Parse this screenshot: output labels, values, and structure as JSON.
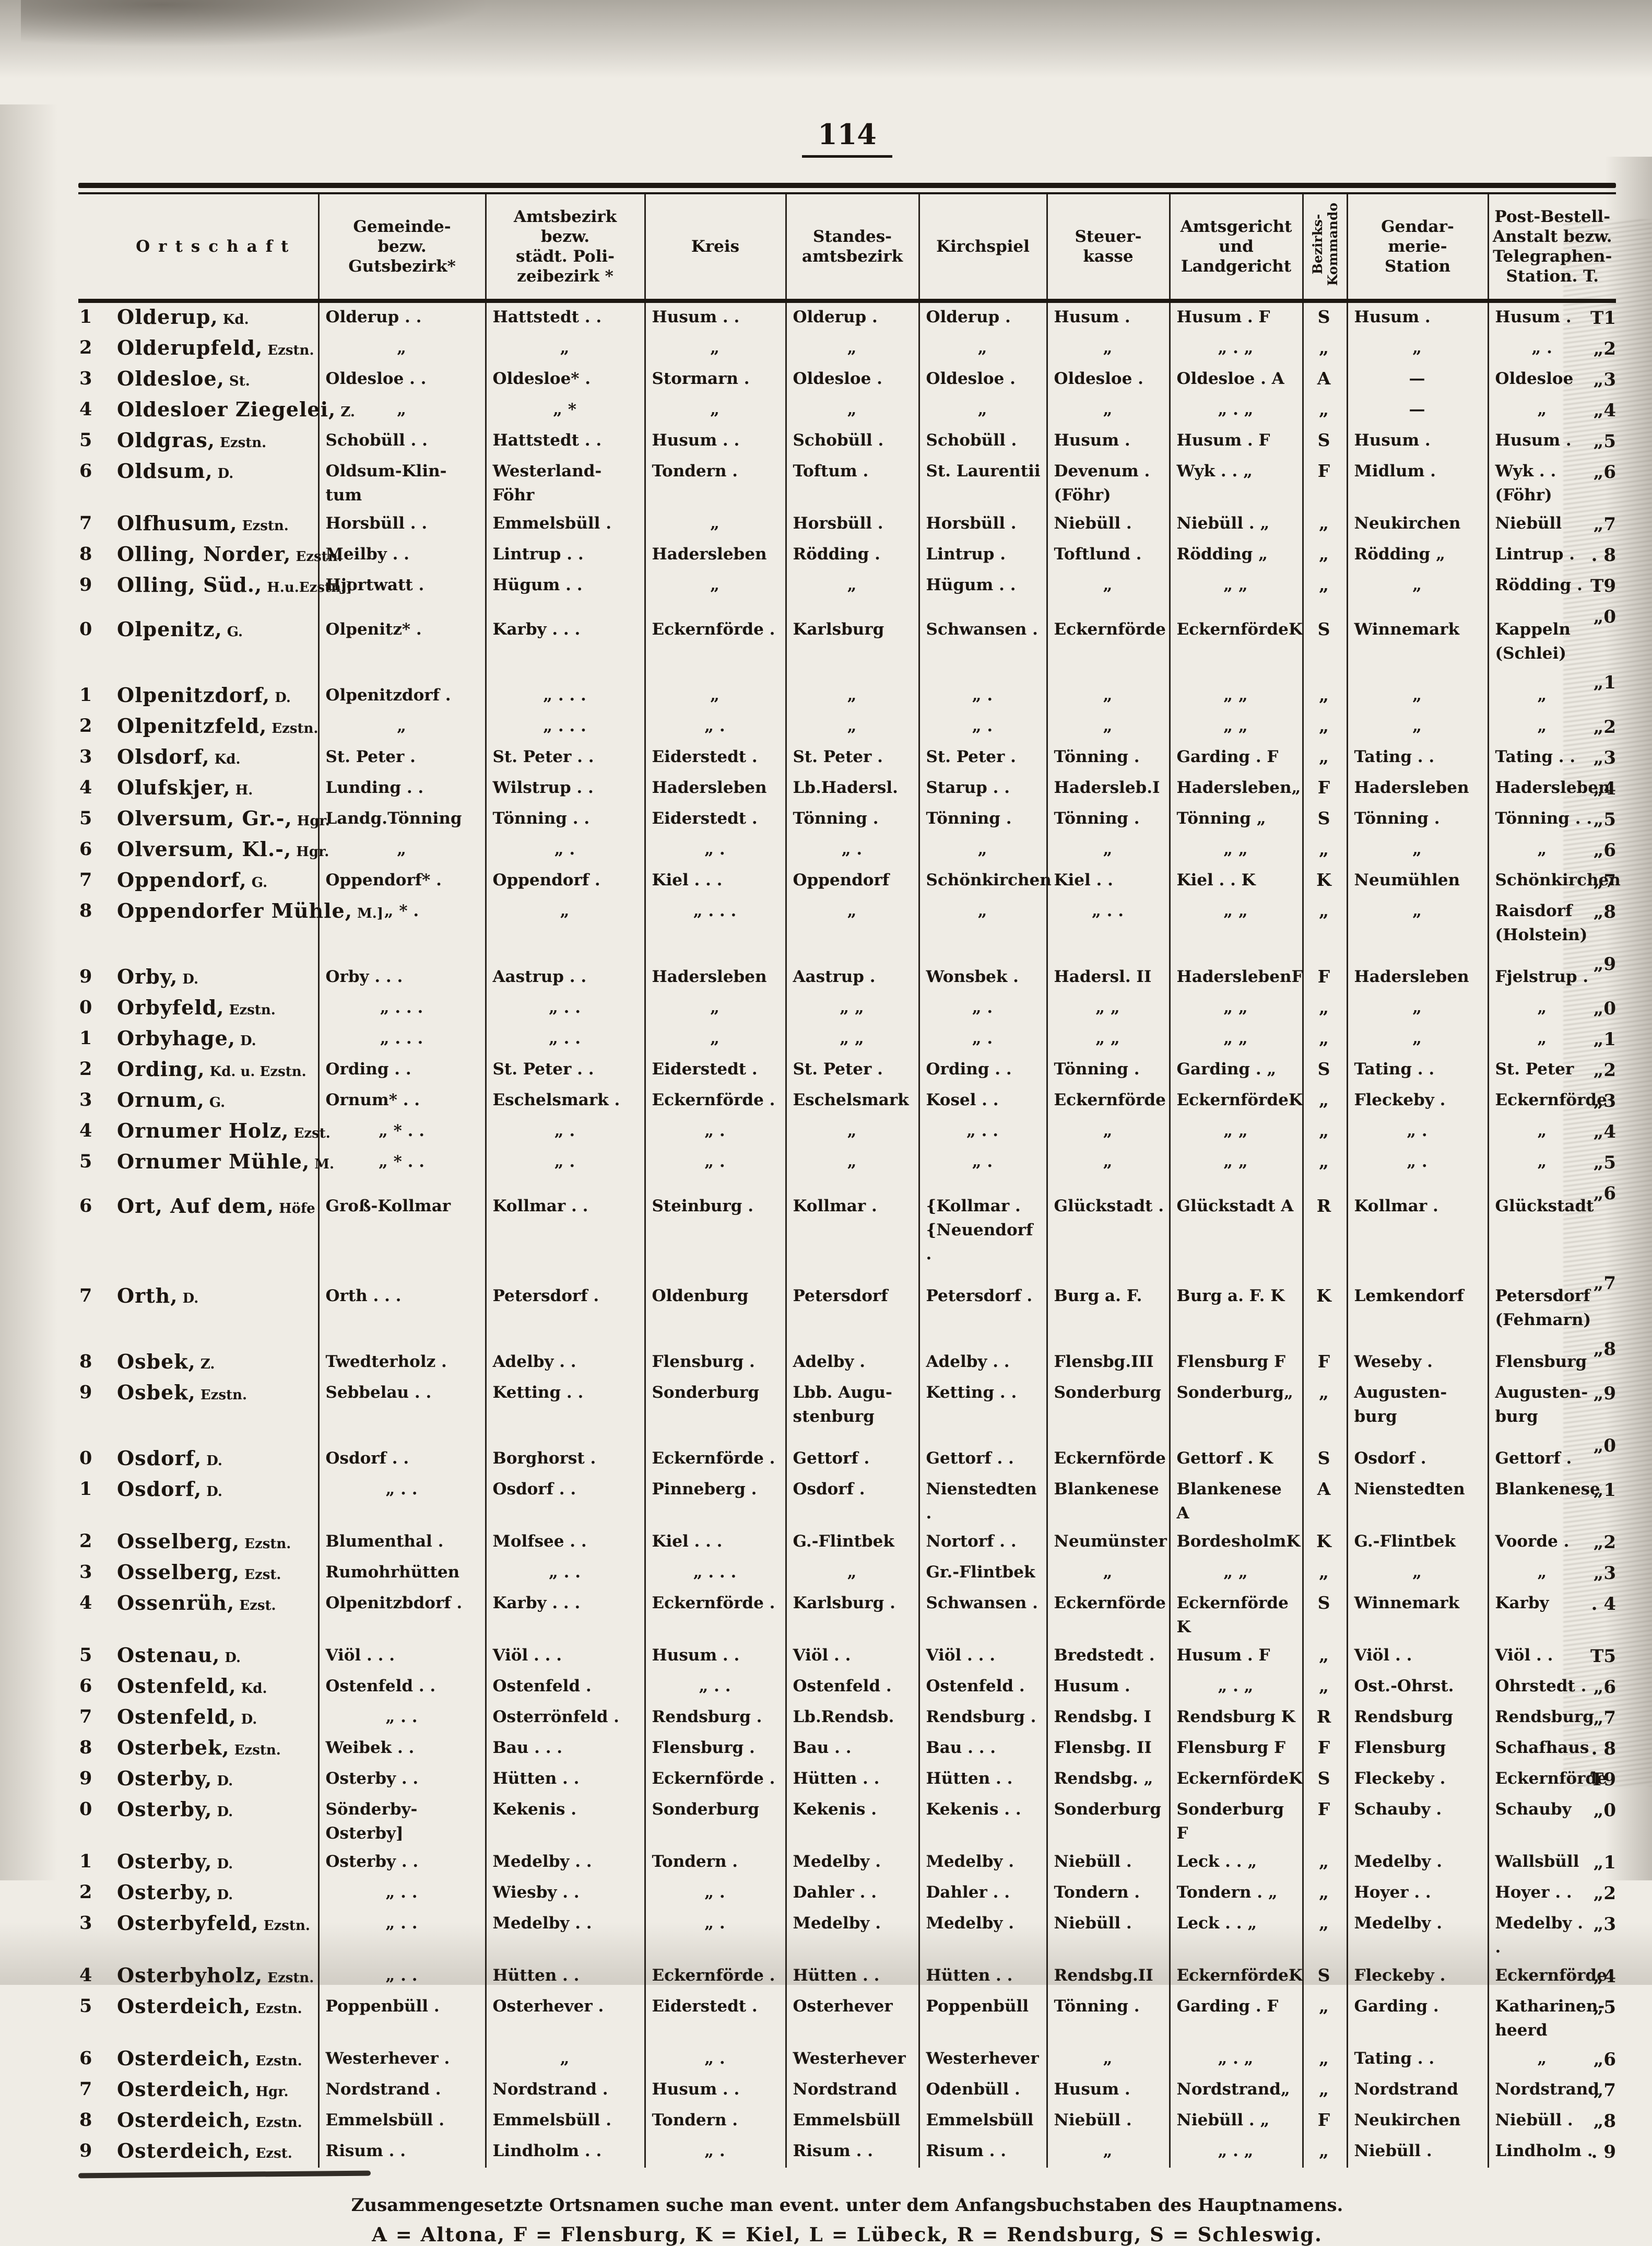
{
  "page": {
    "number": "114"
  },
  "table": {
    "header": {
      "columns": [
        "Ortschaft",
        "Gemeinde-\nbezw.\nGutsbezirk*",
        "Amtsbezirk\nbezw.\nstädt. Poli-\nzeibezirk *",
        "Kreis",
        "Standes-\namtsbezirk",
        "Kirchspiel",
        "Steuer-\nkasse",
        "Amtsgericht\nund\nLandgericht",
        "Bezirks-\nKommando",
        "Gendar-\nmerie-\nStation",
        "Post-Bestell-\nAnstalt bezw.\nTelegraphen-\nStation. T."
      ]
    },
    "rows": [
      {
        "n": "1",
        "ort": "Olderup,",
        "typ": "Kd.",
        "gap": false,
        "cells": [
          "Olderup . .",
          "Hattstedt . .",
          "Husum . .",
          "Olderup .",
          "Olderup .",
          "Husum .",
          "Husum . F",
          "S",
          "Husum .",
          "Husum ."
        ],
        "rn": "T1"
      },
      {
        "n": "2",
        "ort": "Olderupfeld,",
        "typ": "Ezstn.",
        "gap": false,
        "cells": [
          "„",
          "„",
          "„",
          "„",
          "„",
          "„",
          "„ . „",
          "„",
          "„",
          "„ ."
        ],
        "rn": "„2"
      },
      {
        "n": "3",
        "ort": "Oldesloe,",
        "typ": "St.",
        "gap": false,
        "cells": [
          "Oldesloe . .",
          "Oldesloe* .",
          "Stormarn .",
          "Oldesloe .",
          "Oldesloe .",
          "Oldesloe .",
          "Oldesloe . A",
          "A",
          "—",
          "Oldesloe"
        ],
        "rn": "„3"
      },
      {
        "n": "4",
        "ort": "Oldesloer Ziegelei,",
        "typ": "Z.",
        "gap": false,
        "cells": [
          "„",
          "„  *",
          "„",
          "„",
          "„",
          "„",
          "„ . „",
          "„",
          "—",
          "„"
        ],
        "rn": "„4"
      },
      {
        "n": "5",
        "ort": "Oldgras,",
        "typ": "Ezstn.",
        "gap": false,
        "cells": [
          "Schobüll . .",
          "Hattstedt . .",
          "Husum . .",
          "Schobüll .",
          "Schobüll .",
          "Husum .",
          "Husum . F",
          "S",
          "Husum .",
          "Husum ."
        ],
        "rn": "„5"
      },
      {
        "n": "6",
        "ort": "Oldsum,",
        "typ": "D.",
        "gap": false,
        "cells": [
          "Oldsum-Klin-\ntum",
          "Westerland-\nFöhr",
          "Tondern .",
          "Toftum .",
          "St. Laurentii",
          "Devenum .\n(Föhr)",
          "Wyk . . „",
          "F",
          "Midlum .",
          "Wyk . .\n(Föhr)"
        ],
        "rn": "„6"
      },
      {
        "n": "7",
        "ort": "Olfhusum,",
        "typ": "Ezstn.",
        "gap": false,
        "cells": [
          "Horsbüll . .",
          "Emmelsbüll .",
          "„",
          "Horsbüll .",
          "Horsbüll .",
          "Niebüll .",
          "Niebüll . „",
          "„",
          "Neukirchen",
          "Niebüll"
        ],
        "rn": "„7"
      },
      {
        "n": "8",
        "ort": "Olling, Norder,",
        "typ": "Ezstn.",
        "gap": false,
        "cells": [
          "Meilby . .",
          "Lintrup . .",
          "Hadersleben",
          "Rödding .",
          "Lintrup .",
          "Toftlund .",
          "Rödding  „",
          "„",
          "Rödding  „",
          "Lintrup ."
        ],
        "rn": ". 8"
      },
      {
        "n": "9",
        "ort": "Olling, Süd.,",
        "typ": "H.u.Ezstn.]",
        "gap": false,
        "cells": [
          "Hjortwatt .",
          "Hügum . .",
          "„",
          "„",
          "Hügum . .",
          "„",
          "„ „",
          "„",
          "„",
          "Rödding ."
        ],
        "rn": "T9"
      },
      {
        "n": "0",
        "ort": "Olpenitz,",
        "typ": "G.",
        "gap": true,
        "cells": [
          "Olpenitz* .",
          "Karby . . .",
          "Eckernförde .",
          "Karlsburg",
          "Schwansen .",
          "Eckernförde",
          "EckernfördeK",
          "S",
          "Winnemark",
          "Kappeln\n(Schlei)"
        ],
        "rn": "„0"
      },
      {
        "n": "1",
        "ort": "Olpenitzdorf,",
        "typ": "D.",
        "gap": true,
        "cells": [
          "Olpenitzdorf .",
          "„ . . .",
          "„",
          "„",
          "„ .",
          "„",
          "„ „",
          "„",
          "„",
          "„"
        ],
        "rn": "„1"
      },
      {
        "n": "2",
        "ort": "Olpenitzfeld,",
        "typ": "Ezstn.",
        "gap": false,
        "cells": [
          "„",
          "„ . . .",
          "„ .",
          "„",
          "„ .",
          "„",
          "„ „",
          "„",
          "„",
          "„"
        ],
        "rn": "„2"
      },
      {
        "n": "3",
        "ort": "Olsdorf,",
        "typ": "Kd.",
        "gap": false,
        "cells": [
          "St. Peter .",
          "St. Peter . .",
          "Eiderstedt .",
          "St. Peter .",
          "St. Peter .",
          "Tönning .",
          "Garding . F",
          "„",
          "Tating . .",
          "Tating . ."
        ],
        "rn": "„3"
      },
      {
        "n": "4",
        "ort": "Olufskjer,",
        "typ": "H.",
        "gap": false,
        "cells": [
          "Lunding . .",
          "Wilstrup . .",
          "Hadersleben",
          "Lb.Hadersl.",
          "Starup . .",
          "Hadersleb.I",
          "Hadersleben„",
          "F",
          "Hadersleben",
          "Hadersleben"
        ],
        "rn": "„4"
      },
      {
        "n": "5",
        "ort": "Olversum, Gr.-,",
        "typ": "Hgr.",
        "gap": false,
        "cells": [
          "Landg.Tönning",
          "Tönning . .",
          "Eiderstedt .",
          "Tönning .",
          "Tönning .",
          "Tönning .",
          "Tönning  „",
          "S",
          "Tönning .",
          "Tönning . ."
        ],
        "rn": "„5"
      },
      {
        "n": "6",
        "ort": "Olversum, Kl.-,",
        "typ": "Hgr.",
        "gap": false,
        "cells": [
          "„",
          "„ .",
          "„ .",
          "„ .",
          "„",
          "„",
          "„ „",
          "„",
          "„",
          "„"
        ],
        "rn": "„6"
      },
      {
        "n": "7",
        "ort": "Oppendorf,",
        "typ": "G.",
        "gap": false,
        "cells": [
          "Oppendorf* .",
          "Oppendorf .",
          "Kiel . . .",
          "Oppendorf",
          "Schönkirchen",
          "Kiel . .",
          "Kiel . . K",
          "K",
          "Neumühlen",
          "Schönkirchen"
        ],
        "rn": "„7"
      },
      {
        "n": "8",
        "ort": "Oppendorfer Mühle,",
        "typ": "M.]",
        "gap": false,
        "cells": [
          "„  * .",
          "„",
          "„ . . .",
          "„",
          "„",
          "„ . .",
          "„ „",
          "„",
          "„",
          "Raisdorf\n(Holstein)"
        ],
        "rn": "„8"
      },
      {
        "n": "9",
        "ort": "Orby,",
        "typ": "D.",
        "gap": true,
        "cells": [
          "Orby . . .",
          "Aastrup . .",
          "Hadersleben",
          "Aastrup .",
          "Wonsbek .",
          "Hadersl. II",
          "HaderslebenF",
          "F",
          "Hadersleben",
          "Fjelstrup ."
        ],
        "rn": "„9"
      },
      {
        "n": "0",
        "ort": "Orbyfeld,",
        "typ": "Ezstn.",
        "gap": false,
        "cells": [
          "„ . . .",
          "„ . .",
          "„",
          "„ „",
          "„ .",
          "„ „",
          "„ „",
          "„",
          "„",
          "„"
        ],
        "rn": "„0"
      },
      {
        "n": "1",
        "ort": "Orbyhage,",
        "typ": "D.",
        "gap": false,
        "cells": [
          "„ . . .",
          "„ . .",
          "„",
          "„ „",
          "„ .",
          "„ „",
          "„ „",
          "„",
          "„",
          "„"
        ],
        "rn": "„1"
      },
      {
        "n": "2",
        "ort": "Ording,",
        "typ": "Kd. u. Ezstn.",
        "gap": false,
        "cells": [
          "Ording . .",
          "St. Peter . .",
          "Eiderstedt .",
          "St. Peter .",
          "Ording . .",
          "Tönning .",
          "Garding . „",
          "S",
          "Tating . .",
          "St. Peter"
        ],
        "rn": "„2"
      },
      {
        "n": "3",
        "ort": "Ornum,",
        "typ": "G.",
        "gap": false,
        "cells": [
          "Ornum* . .",
          "Eschelsmark .",
          "Eckernförde .",
          "Eschelsmark",
          "Kosel . .",
          "Eckernförde",
          "EckernfördeK",
          "„",
          "Fleckeby .",
          "Eckernförde"
        ],
        "rn": "„3"
      },
      {
        "n": "4",
        "ort": "Ornumer Holz,",
        "typ": "Ezst.",
        "gap": false,
        "cells": [
          "„  * . .",
          "„ .",
          "„ .",
          "„",
          "„ . .",
          "„",
          "„ „",
          "„",
          "„ .",
          "„"
        ],
        "rn": "„4"
      },
      {
        "n": "5",
        "ort": "Ornumer Mühle,",
        "typ": "M.",
        "gap": false,
        "cells": [
          "„  * . .",
          "„ .",
          "„ .",
          "„",
          "„ .",
          "„",
          "„ „",
          "„",
          "„ .",
          "„"
        ],
        "rn": "„5"
      },
      {
        "n": "6",
        "ort": "Ort, Auf dem,",
        "typ": "Höfe",
        "gap": true,
        "cells": [
          "Groß-Kollmar",
          "Kollmar . .",
          "Steinburg .",
          "Kollmar .",
          "{Kollmar .\n{Neuendorf .",
          "Glückstadt .",
          "Glückstadt A",
          "R",
          "Kollmar .",
          "Glückstadt"
        ],
        "rn": "„6"
      },
      {
        "n": "7",
        "ort": "Orth,",
        "typ": "D.",
        "gap": true,
        "cells": [
          "Orth . . .",
          "Petersdorf .",
          "Oldenburg",
          "Petersdorf",
          "Petersdorf .",
          "Burg a. F.",
          "Burg a. F. K",
          "K",
          "Lemkendorf",
          "Petersdorf\n(Fehmarn)"
        ],
        "rn": "„7"
      },
      {
        "n": "8",
        "ort": "Osbek,",
        "typ": "Z.",
        "gap": true,
        "cells": [
          "Twedterholz .",
          "Adelby . .",
          "Flensburg .",
          "Adelby .",
          "Adelby . .",
          "Flensbg.III",
          "Flensburg F",
          "F",
          "Weseby .",
          "Flensburg"
        ],
        "rn": "„8"
      },
      {
        "n": "9",
        "ort": "Osbek,",
        "typ": "Ezstn.",
        "gap": false,
        "cells": [
          "Sebbelau . .",
          "Ketting . .",
          "Sonderburg",
          "Lbb. Augu-\nstenburg",
          "Ketting . .",
          "Sonderburg",
          "Sonderburg„",
          "„",
          "Augusten-\nburg",
          "Augusten-\nburg"
        ],
        "rn": "„9"
      },
      {
        "n": "0",
        "ort": "Osdorf,",
        "typ": "D.",
        "gap": true,
        "cells": [
          "Osdorf . .",
          "Borghorst .",
          "Eckernförde .",
          "Gettorf .",
          "Gettorf . .",
          "Eckernförde",
          "Gettorf . K",
          "S",
          "Osdorf .",
          "Gettorf ."
        ],
        "rn": "„0"
      },
      {
        "n": "1",
        "ort": "Osdorf,",
        "typ": "D.",
        "gap": false,
        "cells": [
          "„ . .",
          "Osdorf . .",
          "Pinneberg .",
          "Osdorf .",
          "Nienstedten .",
          "Blankenese",
          "Blankenese A",
          "A",
          "Nienstedten",
          "Blankenese"
        ],
        "rn": "„1"
      },
      {
        "n": "2",
        "ort": "Osselberg,",
        "typ": "Ezstn.",
        "gap": false,
        "cells": [
          "Blumenthal .",
          "Molfsee . .",
          "Kiel . . .",
          "G.-Flintbek",
          "Nortorf . .",
          "Neumünster",
          "BordesholmK",
          "K",
          "G.-Flintbek",
          "Voorde ."
        ],
        "rn": "„2"
      },
      {
        "n": "3",
        "ort": "Osselberg,",
        "typ": "Ezst.",
        "gap": false,
        "cells": [
          "Rumohrhütten",
          "„ . .",
          "„ . . .",
          "„",
          "Gr.-Flintbek",
          "„",
          "„ „",
          "„",
          "„",
          "„"
        ],
        "rn": "„3"
      },
      {
        "n": "4",
        "ort": "Ossenrüh,",
        "typ": "Ezst.",
        "gap": false,
        "cells": [
          "Olpenitzbdorf .",
          "Karby . . .",
          "Eckernförde .",
          "Karlsburg .",
          "Schwansen .",
          "Eckernförde",
          "Eckernförde K",
          "S",
          "Winnemark",
          "Karby"
        ],
        "rn": ". 4"
      },
      {
        "n": "5",
        "ort": "Ostenau,",
        "typ": "D.",
        "gap": false,
        "cells": [
          "Viöl . . .",
          "Viöl . . .",
          "Husum . .",
          "Viöl . .",
          "Viöl . . .",
          "Bredstedt .",
          "Husum . F",
          "„",
          "Viöl . .",
          "Viöl . ."
        ],
        "rn": "T5"
      },
      {
        "n": "6",
        "ort": "Ostenfeld,",
        "typ": "Kd.",
        "gap": false,
        "cells": [
          "Ostenfeld . .",
          "Ostenfeld .",
          "„ . .",
          "Ostenfeld .",
          "Ostenfeld .",
          "Husum .",
          "„ . „",
          "„",
          "Ost.-Ohrst.",
          "Ohrstedt ."
        ],
        "rn": "„6"
      },
      {
        "n": "7",
        "ort": "Ostenfeld,",
        "typ": "D.",
        "gap": false,
        "cells": [
          "„ . .",
          "Osterrönfeld .",
          "Rendsburg .",
          "Lb.Rendsb.",
          "Rendsburg .",
          "Rendsbg. I",
          "Rendsburg K",
          "R",
          "Rendsburg",
          "Rendsburg"
        ],
        "rn": "„7"
      },
      {
        "n": "8",
        "ort": "Osterbek,",
        "typ": "Ezstn.",
        "gap": false,
        "cells": [
          "Weibek . .",
          "Bau . . .",
          "Flensburg .",
          "Bau . .",
          "Bau . . .",
          "Flensbg. II",
          "Flensburg F",
          "F",
          "Flensburg",
          "Schafhaus"
        ],
        "rn": ". 8"
      },
      {
        "n": "9",
        "ort": "Osterby,",
        "typ": "D.",
        "gap": false,
        "cells": [
          "Osterby . .",
          "Hütten . .",
          "Eckernförde .",
          "Hütten . .",
          "Hütten . .",
          "Rendsbg. „",
          "EckernfördeK",
          "S",
          "Fleckeby .",
          "Eckernförde"
        ],
        "rn": "T9"
      },
      {
        "n": "0",
        "ort": "Osterby,",
        "typ": "D.",
        "gap": false,
        "cells": [
          "Sönderby-Osterby]",
          "Kekenis .",
          "Sonderburg",
          "Kekenis .",
          "Kekenis . .",
          "Sonderburg",
          "Sonderburg F",
          "F",
          "Schauby .",
          "Schauby"
        ],
        "rn": "„0"
      },
      {
        "n": "1",
        "ort": "Osterby,",
        "typ": "D.",
        "gap": false,
        "cells": [
          "Osterby . .",
          "Medelby . .",
          "Tondern .",
          "Medelby .",
          "Medelby .",
          "Niebüll .",
          "Leck . . „",
          "„",
          "Medelby .",
          "Wallsbüll"
        ],
        "rn": "„1"
      },
      {
        "n": "2",
        "ort": "Osterby,",
        "typ": "D.",
        "gap": false,
        "cells": [
          "„ . .",
          "Wiesby . .",
          "„ .",
          "Dahler . .",
          "Dahler . .",
          "Tondern .",
          "Tondern . „",
          "„",
          "Hoyer . .",
          "Hoyer . ."
        ],
        "rn": "„2"
      },
      {
        "n": "3",
        "ort": "Osterbyfeld,",
        "typ": "Ezstn.",
        "gap": false,
        "cells": [
          "„ . .",
          "Medelby . .",
          "„ .",
          "Medelby .",
          "Medelby .",
          "Niebüll .",
          "Leck . . „",
          "„",
          "Medelby .",
          "Medelby . ."
        ],
        "rn": "„3"
      },
      {
        "n": "4",
        "ort": "Osterbyholz,",
        "typ": "Ezstn.",
        "gap": false,
        "cells": [
          "„ . .",
          "Hütten . .",
          "Eckernförde .",
          "Hütten . .",
          "Hütten . .",
          "Rendsbg.II",
          "EckernfördeK",
          "S",
          "Fleckeby .",
          "Eckernförde"
        ],
        "rn": "„4"
      },
      {
        "n": "5",
        "ort": "Osterdeich,",
        "typ": "Ezstn.",
        "gap": false,
        "cells": [
          "Poppenbüll .",
          "Osterhever .",
          "Eiderstedt .",
          "Osterhever",
          "Poppenbüll",
          "Tönning .",
          "Garding . F",
          "„",
          "Garding .",
          "Katharinen-\nheerd"
        ],
        "rn": "„5"
      },
      {
        "n": "6",
        "ort": "Osterdeich,",
        "typ": "Ezstn.",
        "gap": false,
        "cells": [
          "Westerhever .",
          "„",
          "„ .",
          "Westerhever",
          "Westerhever",
          "„",
          "„ . „",
          "„",
          "Tating . .",
          "„"
        ],
        "rn": "„6"
      },
      {
        "n": "7",
        "ort": "Osterdeich,",
        "typ": "Hgr.",
        "gap": false,
        "cells": [
          "Nordstrand .",
          "Nordstrand .",
          "Husum . .",
          "Nordstrand",
          "Odenbüll .",
          "Husum .",
          "Nordstrand„",
          "„",
          "Nordstrand",
          "Nordstrand"
        ],
        "rn": "„7"
      },
      {
        "n": "8",
        "ort": "Osterdeich,",
        "typ": "Ezstn.",
        "gap": false,
        "cells": [
          "Emmelsbüll .",
          "Emmelsbüll .",
          "Tondern .",
          "Emmelsbüll",
          "Emmelsbüll",
          "Niebüll .",
          "Niebüll . „",
          "F",
          "Neukirchen",
          "Niebüll ."
        ],
        "rn": "„8"
      },
      {
        "n": "9",
        "ort": "Osterdeich,",
        "typ": "Ezst.",
        "gap": false,
        "cells": [
          "Risum . .",
          "Lindholm . .",
          "„ .",
          "Risum . .",
          "Risum . .",
          "„",
          "„ . „",
          "„",
          "Niebüll .",
          "Lindholm ."
        ],
        "rn": ". 9"
      }
    ]
  },
  "footer": {
    "note": "Zusammengesetzte Ortsnamen suche man event. unter dem Anfangsbuchstaben des Hauptnamens.",
    "legend": "A = Altona,  F = Flensburg,  K = Kiel,  L = Lübeck,  R = Rendsburg,  S = Schleswig."
  }
}
